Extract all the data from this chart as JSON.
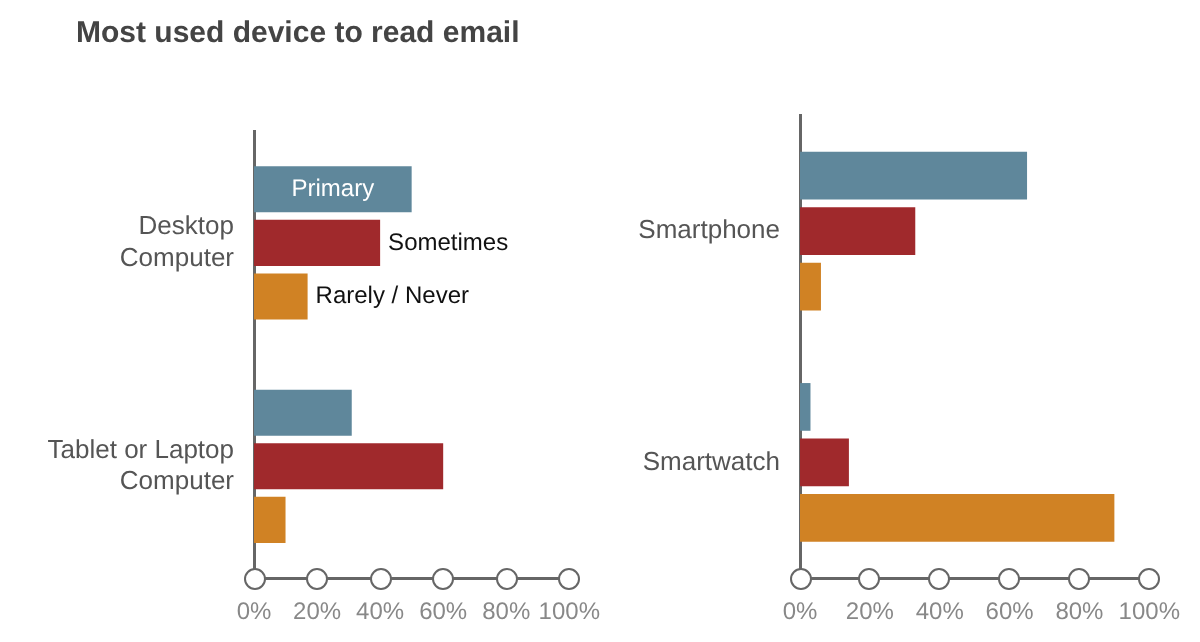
{
  "chart_data": [
    {
      "type": "bar",
      "orientation": "horizontal",
      "title": "Most used device to read email",
      "categories": [
        "Desktop Computer",
        "Tablet or Laptop Computer"
      ],
      "series": [
        {
          "name": "Primary",
          "color": "#5f879b",
          "values": [
            50,
            31
          ]
        },
        {
          "name": "Sometimes",
          "color": "#a0292c",
          "values": [
            40,
            60
          ]
        },
        {
          "name": "Rarely / Never",
          "color": "#d08224",
          "values": [
            17,
            10
          ]
        }
      ],
      "xlim": [
        0,
        100
      ],
      "xticks": [
        {
          "value": 0,
          "label": "0%"
        },
        {
          "value": 20,
          "label": "20%"
        },
        {
          "value": 40,
          "label": "40%"
        },
        {
          "value": 60,
          "label": "60%"
        },
        {
          "value": 80,
          "label": "80%"
        },
        {
          "value": 100,
          "label": "100%"
        }
      ],
      "grid": false
    },
    {
      "type": "bar",
      "orientation": "horizontal",
      "categories": [
        "Smartphone",
        "Smartwatch"
      ],
      "series": [
        {
          "color": "#5f879b",
          "values": [
            65,
            3
          ]
        },
        {
          "color": "#a0292c",
          "values": [
            33,
            14
          ]
        },
        {
          "color": "#d08224",
          "values": [
            6,
            90
          ]
        }
      ],
      "xlim": [
        0,
        100
      ],
      "xticks": [
        {
          "value": 0,
          "label": "0%"
        },
        {
          "value": 20,
          "label": "20%"
        },
        {
          "value": 40,
          "label": "40%"
        },
        {
          "value": 60,
          "label": "60%"
        },
        {
          "value": 80,
          "label": "80%"
        },
        {
          "value": 100,
          "label": "100%"
        }
      ],
      "grid": false
    }
  ]
}
